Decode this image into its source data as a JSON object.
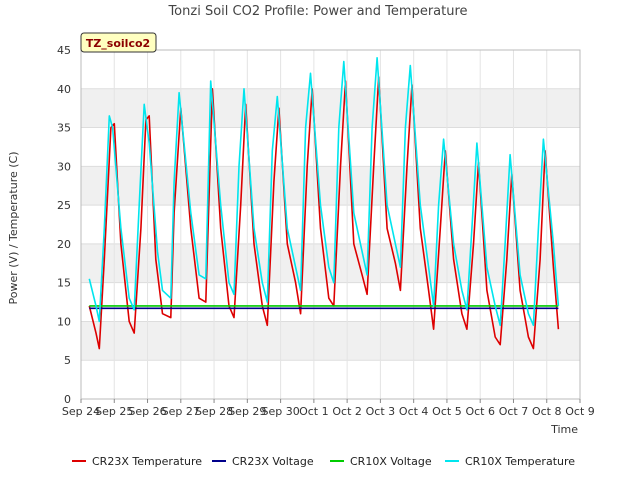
{
  "chart_data": {
    "type": "line",
    "title": "Tonzi Soil CO2 Profile: Power and Temperature",
    "xlabel": "Time",
    "ylabel": "Power (V) / Temperature (C)",
    "ylim": [
      0,
      45
    ],
    "yticks": [
      0,
      5,
      10,
      15,
      20,
      25,
      30,
      35,
      40,
      45
    ],
    "x_tick_labels": [
      "Sep 24",
      "Sep 25",
      "Sep 26",
      "Sep 27",
      "Sep 28",
      "Sep 29",
      "Sep 30",
      "Oct 1",
      "Oct 2",
      "Oct 3",
      "Oct 4",
      "Oct 5",
      "Oct 6",
      "Oct 7",
      "Oct 8",
      "Oct 9"
    ],
    "xlim_days": [
      0,
      15
    ],
    "station_label": "TZ_soilco2",
    "grid": true,
    "legend_position": "bottom",
    "series": [
      {
        "name": "CR23X Temperature",
        "color": "#dd0000",
        "x": [
          0.25,
          0.45,
          0.55,
          0.7,
          0.9,
          1.0,
          1.2,
          1.45,
          1.6,
          1.8,
          1.95,
          2.05,
          2.25,
          2.45,
          2.7,
          2.8,
          3.0,
          3.3,
          3.55,
          3.75,
          3.95,
          4.2,
          4.45,
          4.6,
          4.8,
          4.95,
          5.2,
          5.45,
          5.6,
          5.8,
          5.95,
          6.2,
          6.45,
          6.6,
          6.8,
          6.95,
          7.2,
          7.45,
          7.6,
          7.8,
          7.95,
          8.2,
          8.45,
          8.6,
          8.8,
          8.95,
          9.2,
          9.45,
          9.6,
          9.8,
          9.95,
          10.2,
          10.45,
          10.6,
          10.8,
          10.95,
          11.2,
          11.45,
          11.6,
          11.8,
          11.95,
          12.2,
          12.45,
          12.6,
          12.8,
          12.95,
          13.2,
          13.45,
          13.6,
          13.8,
          13.95,
          14.2,
          14.35
        ],
        "values": [
          12.0,
          8.5,
          6.5,
          18.0,
          35.0,
          35.5,
          20.0,
          10.0,
          8.5,
          22.0,
          36.0,
          36.5,
          18.0,
          11.0,
          10.5,
          24.0,
          37.5,
          22.0,
          13.0,
          12.5,
          40.0,
          22.0,
          12.0,
          10.5,
          25.0,
          38.0,
          20.0,
          12.0,
          9.5,
          28.0,
          37.5,
          20.0,
          15.0,
          11.0,
          30.0,
          40.0,
          22.0,
          13.0,
          12.0,
          30.0,
          41.0,
          20.0,
          16.0,
          13.5,
          30.0,
          41.5,
          22.0,
          17.5,
          14.0,
          30.0,
          40.5,
          22.0,
          14.0,
          9.0,
          22.0,
          32.0,
          18.0,
          11.0,
          9.0,
          20.0,
          30.5,
          14.0,
          8.0,
          7.0,
          18.0,
          29.0,
          14.0,
          8.0,
          6.5,
          18.0,
          32.0,
          17.0,
          9.0
        ]
      },
      {
        "name": "CR23X Voltage",
        "color": "#00008b",
        "x": [
          0.25,
          14.35
        ],
        "values": [
          11.7,
          11.7
        ]
      },
      {
        "name": "CR10X Voltage",
        "color": "#00cc00",
        "x": [
          0.25,
          14.35
        ],
        "values": [
          12.0,
          12.0
        ]
      },
      {
        "name": "CR10X Temperature",
        "color": "#00e5ee",
        "x": [
          0.25,
          0.45,
          0.55,
          0.7,
          0.85,
          0.95,
          1.2,
          1.45,
          1.6,
          1.75,
          1.9,
          2.05,
          2.3,
          2.45,
          2.7,
          2.8,
          2.95,
          3.3,
          3.55,
          3.75,
          3.9,
          4.2,
          4.45,
          4.6,
          4.75,
          4.9,
          5.2,
          5.45,
          5.6,
          5.75,
          5.9,
          6.2,
          6.45,
          6.6,
          6.75,
          6.9,
          7.2,
          7.45,
          7.6,
          7.75,
          7.9,
          8.2,
          8.45,
          8.6,
          8.75,
          8.9,
          9.2,
          9.45,
          9.6,
          9.75,
          9.9,
          10.2,
          10.45,
          10.6,
          10.75,
          10.9,
          11.2,
          11.45,
          11.6,
          11.75,
          11.9,
          12.2,
          12.45,
          12.6,
          12.75,
          12.9,
          13.2,
          13.45,
          13.6,
          13.75,
          13.9,
          14.2,
          14.35
        ],
        "values": [
          15.5,
          12.0,
          10.0,
          22.0,
          36.5,
          35.0,
          22.0,
          13.0,
          11.5,
          25.0,
          38.0,
          33.0,
          19.0,
          14.0,
          13.0,
          28.0,
          39.5,
          24.0,
          16.0,
          15.5,
          41.0,
          25.0,
          15.0,
          13.5,
          30.0,
          40.0,
          22.0,
          15.0,
          12.5,
          32.0,
          39.0,
          22.0,
          17.0,
          14.0,
          35.0,
          42.0,
          25.0,
          17.0,
          15.0,
          35.0,
          43.5,
          24.0,
          19.0,
          16.0,
          35.0,
          44.0,
          25.0,
          20.0,
          17.0,
          35.0,
          43.0,
          25.0,
          17.0,
          12.0,
          25.0,
          33.5,
          20.0,
          14.0,
          11.5,
          22.0,
          33.0,
          17.0,
          12.0,
          9.5,
          20.0,
          31.5,
          16.0,
          11.0,
          9.5,
          22.0,
          33.5,
          20.0,
          12.0
        ]
      }
    ]
  }
}
